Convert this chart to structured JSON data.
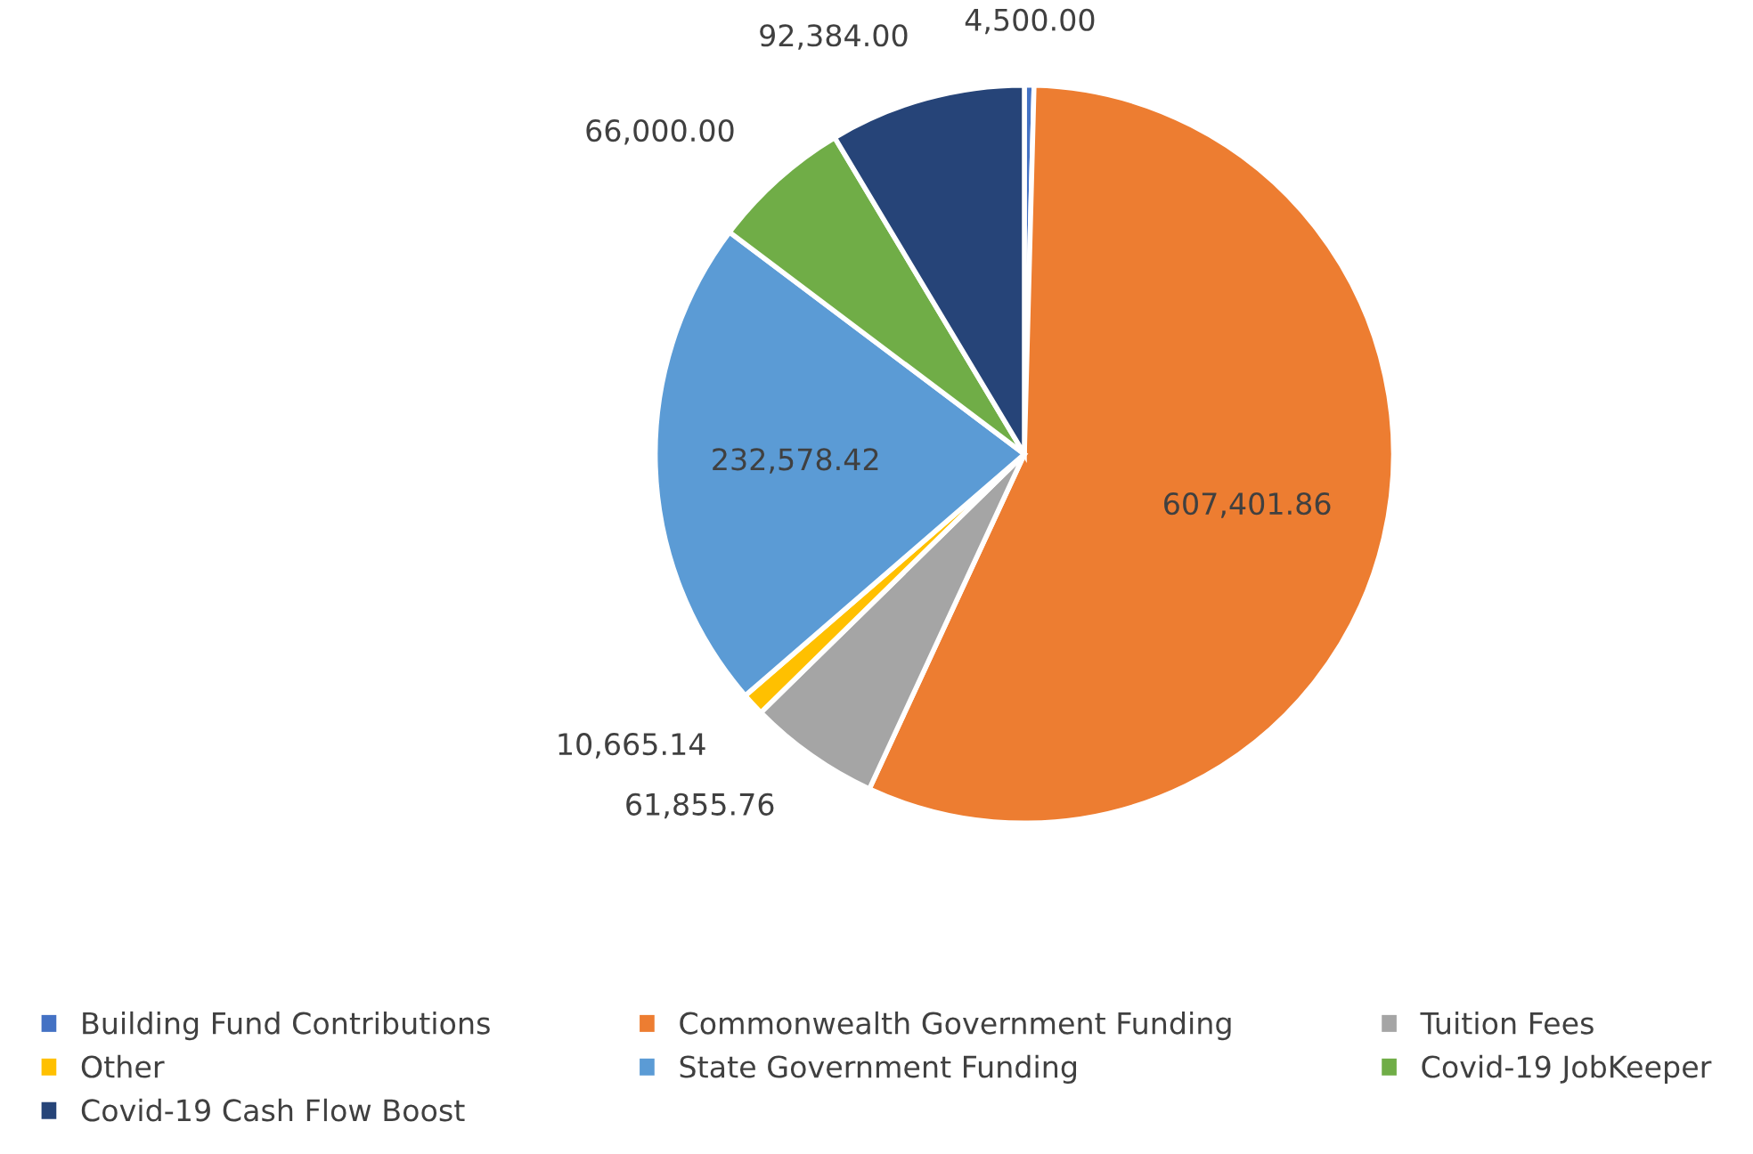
{
  "chart_data": {
    "type": "pie",
    "categories": [
      "Building Fund Contributions",
      "Commonwealth Government Funding",
      "Tuition Fees",
      "Other",
      "State Government Funding",
      "Covid-19 JobKeeper",
      "Covid-19 Cash Flow Boost"
    ],
    "values": [
      4500.0,
      607401.86,
      61855.76,
      10665.14,
      232578.42,
      66000.0,
      92384.0
    ],
    "colors": [
      "#4472c4",
      "#ed7d31",
      "#a5a5a5",
      "#ffc000",
      "#5b9bd5",
      "#70ad47",
      "#264478"
    ],
    "value_labels": [
      "4,500.00",
      "607,401.86",
      "61,855.76",
      "10,665.14",
      "232,578.42",
      "66,000.00",
      "92,384.00"
    ],
    "legend": "bottom"
  }
}
